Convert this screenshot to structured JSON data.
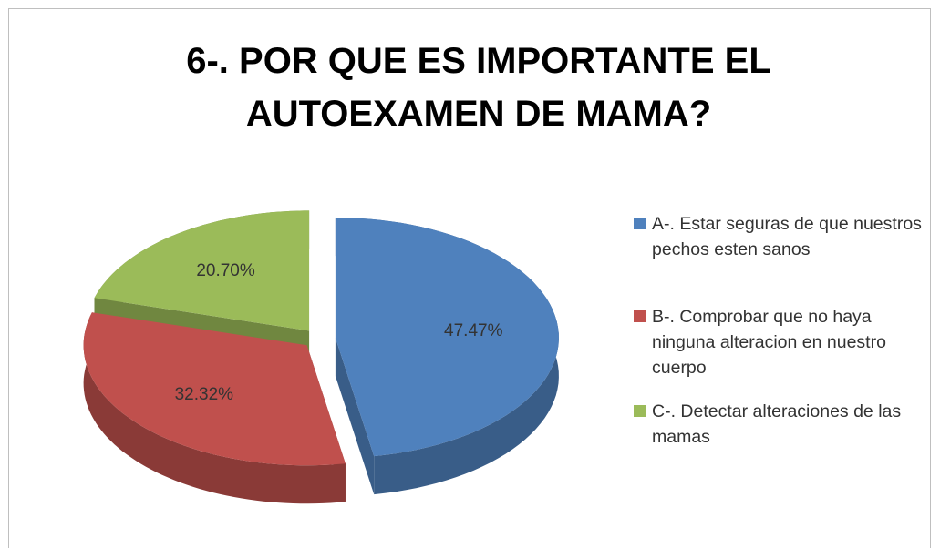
{
  "chart_data": {
    "type": "pie3d",
    "title": "6-. POR QUE ES IMPORTANTE EL AUTOEXAMEN DE MAMA?",
    "categories": [
      "A-.  Estar seguras de que nuestros pechos esten sanos",
      "B-. Comprobar que no haya ninguna alteracion en nuestro cuerpo",
      "C-. Detectar alteraciones de las mamas"
    ],
    "values": [
      47.47,
      32.32,
      20.7
    ],
    "value_labels": [
      "47.47%",
      "32.32%",
      "20.70%"
    ],
    "colors": [
      "#4f81bd",
      "#c0504d",
      "#9bbb59"
    ],
    "legend": "right"
  }
}
